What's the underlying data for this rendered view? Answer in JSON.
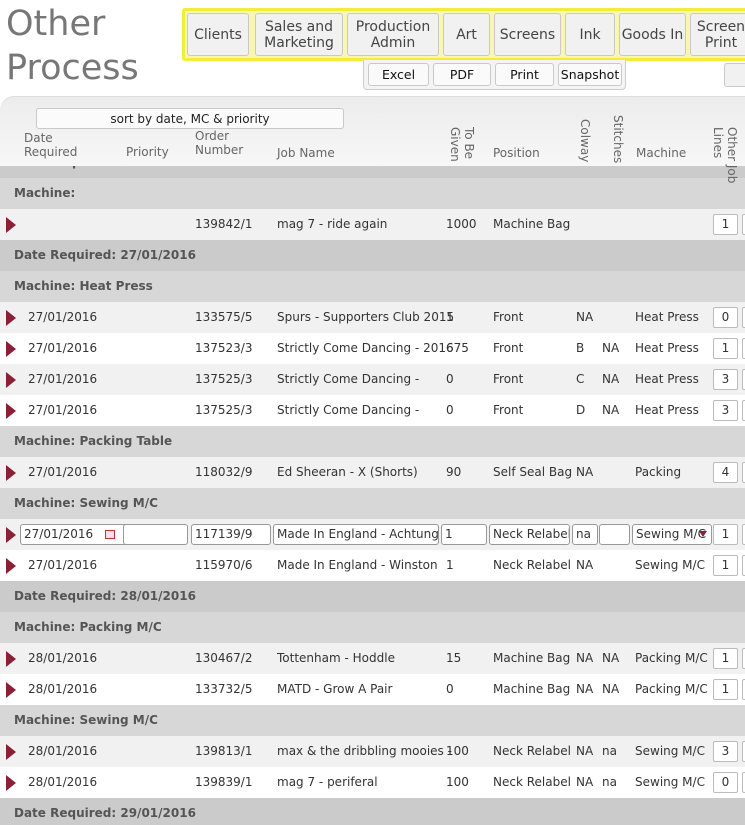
{
  "header": {
    "title": "Other Process",
    "nav": [
      "Clients",
      "Sales and Marketing",
      "Production Admin",
      "Art",
      "Screens",
      "Ink",
      "Goods In",
      "Screen Print"
    ],
    "tools": [
      "Excel",
      "PDF",
      "Print",
      "Snapshot"
    ]
  },
  "table": {
    "sort_button": "sort by date, MC & priority",
    "columns": {
      "date": "Date Required",
      "priority": "Priority",
      "order": "Order Number",
      "job": "Job Name",
      "given": "To Be Given",
      "position": "Position",
      "colway": "Colway",
      "stitches": "Stitches",
      "machine": "Machine",
      "other": "Other Job Lines"
    },
    "rows": [
      {
        "label": "Date Required:"
      },
      {
        "label": "Machine:"
      },
      {
        "order": "139842/1",
        "job": "mag 7 - ride again",
        "given": 1000,
        "position": "Machine Bag",
        "other": 1
      },
      {
        "label": "Date Required: 27/01/2016"
      },
      {
        "label": "Machine: Heat Press"
      },
      {
        "date": "27/01/2016",
        "order": "133575/5",
        "job": "Spurs - Supporters Club 2015",
        "given": 1,
        "position": "Front",
        "colway": "NA",
        "machine": "Heat Press",
        "other": 0
      },
      {
        "date": "27/01/2016",
        "order": "137523/3",
        "job": "Strictly Come Dancing - 2016",
        "given": 675,
        "position": "Front",
        "colway": "B",
        "stitches": "NA",
        "machine": "Heat Press",
        "other": 1
      },
      {
        "date": "27/01/2016",
        "order": "137525/3",
        "job": "Strictly Come Dancing -",
        "given": 0,
        "position": "Front",
        "colway": "C",
        "stitches": "NA",
        "machine": "Heat Press",
        "other": 3
      },
      {
        "date": "27/01/2016",
        "order": "137525/3",
        "job": "Strictly Come Dancing -",
        "given": 0,
        "position": "Front",
        "colway": "D",
        "stitches": "NA",
        "machine": "Heat Press",
        "other": 3
      },
      {
        "label": "Machine: Packing Table"
      },
      {
        "date": "27/01/2016",
        "order": "118032/9",
        "job": "Ed Sheeran - X (Shorts)",
        "given": 90,
        "position": "Self Seal Bag",
        "colway": "NA",
        "machine": "Packing",
        "other": 4
      },
      {
        "label": "Machine: Sewing M/C"
      },
      {
        "editing": true,
        "date": "27/01/2016",
        "order": "117139/9",
        "job": "Made In England - Achtung",
        "given": 1,
        "position": "Neck Relabel",
        "colway": "na",
        "machine": "Sewing M/C",
        "other": 1
      },
      {
        "date": "27/01/2016",
        "order": "115970/6",
        "job": "Made In England - Winston",
        "given": 1,
        "position": "Neck Relabel",
        "colway": "NA",
        "machine": "Sewing M/C",
        "other": 1
      },
      {
        "label": "Date Required: 28/01/2016"
      },
      {
        "label": "Machine: Packing M/C"
      },
      {
        "date": "28/01/2016",
        "order": "130467/2",
        "job": "Tottenham - Hoddle",
        "given": 15,
        "position": "Machine Bag",
        "colway": "NA",
        "stitches": "NA",
        "machine": "Packing M/C",
        "other": 1
      },
      {
        "date": "28/01/2016",
        "order": "133732/5",
        "job": "MATD - Grow A Pair",
        "given": 0,
        "position": "Machine Bag",
        "colway": "NA",
        "stitches": "NA",
        "machine": "Packing M/C",
        "other": 1
      },
      {
        "label": "Machine: Sewing M/C"
      },
      {
        "date": "28/01/2016",
        "order": "139813/1",
        "job": "max & the dribbling mooies -",
        "given": 100,
        "position": "Neck Relabel",
        "colway": "NA",
        "stitches": "na",
        "machine": "Sewing M/C",
        "other": 3
      },
      {
        "date": "28/01/2016",
        "order": "139839/1",
        "job": "mag 7 - periferal",
        "given": 100,
        "position": "Neck Relabel",
        "colway": "NA",
        "stitches": "na",
        "machine": "Sewing M/C",
        "other": 0
      },
      {
        "label": "Date Required: 29/01/2016"
      }
    ]
  }
}
